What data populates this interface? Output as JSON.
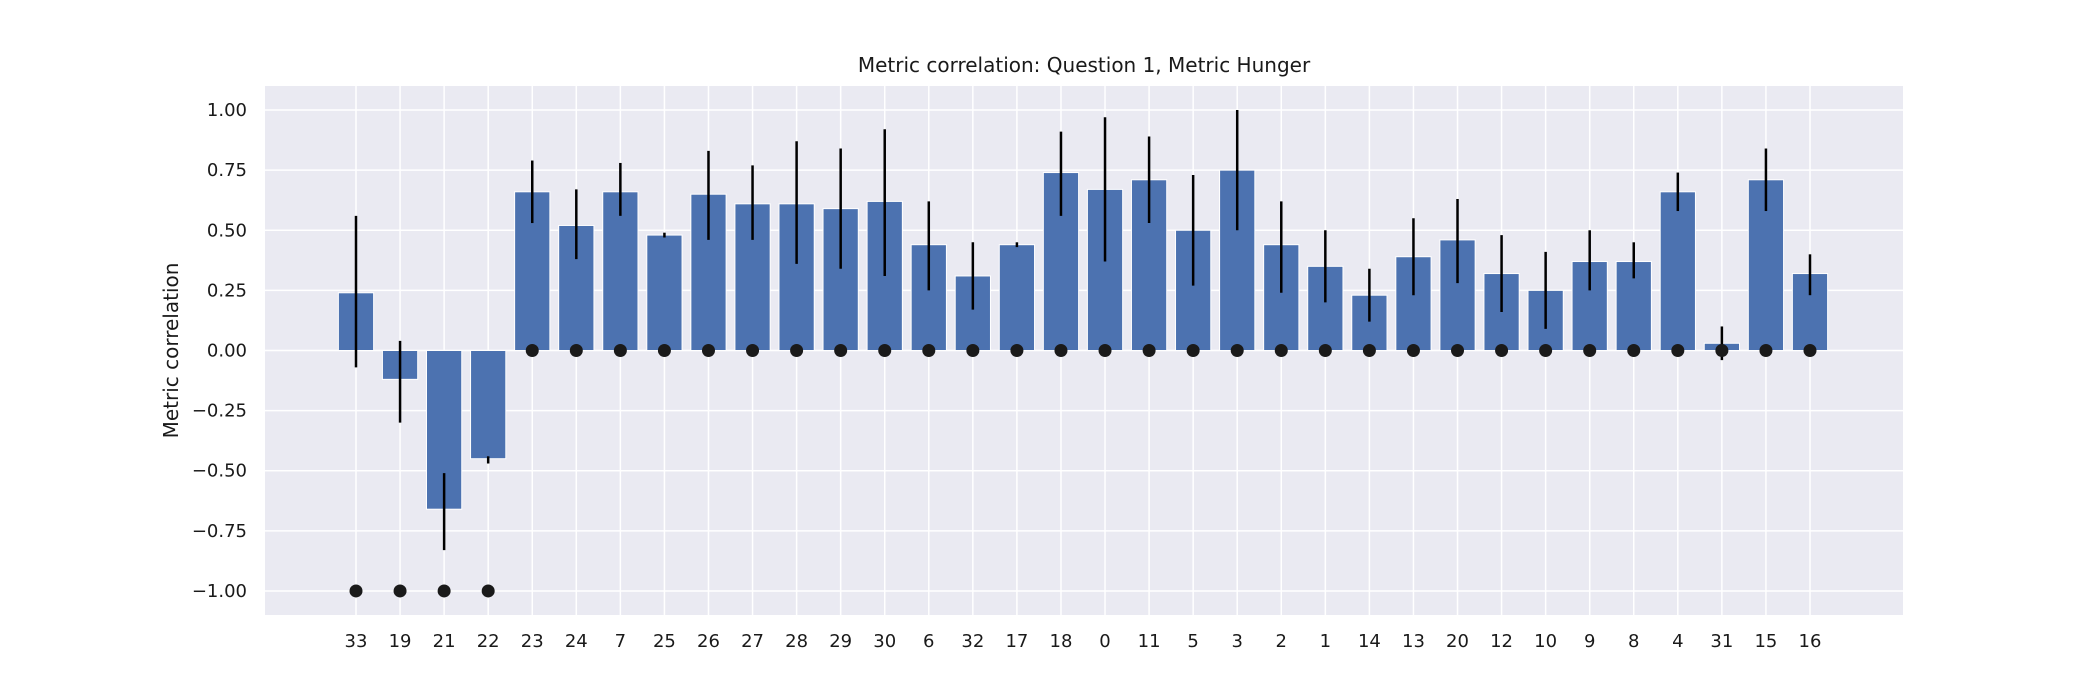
{
  "chart_data": {
    "type": "bar",
    "title": "Metric correlation: Question 1, Metric Hunger",
    "xlabel": "",
    "ylabel": "Metric correlation",
    "ylim": [
      -1.1,
      1.1
    ],
    "yticks": [
      -1.0,
      -0.75,
      -0.5,
      -0.25,
      0.0,
      0.25,
      0.5,
      0.75,
      1.0
    ],
    "ytick_labels": [
      "−1.00",
      "−0.75",
      "−0.50",
      "−0.25",
      "0.00",
      "0.25",
      "0.50",
      "0.75",
      "1.00"
    ],
    "grid": true,
    "categories": [
      "33",
      "19",
      "21",
      "22",
      "23",
      "24",
      "7",
      "25",
      "26",
      "27",
      "28",
      "29",
      "30",
      "6",
      "32",
      "17",
      "18",
      "0",
      "11",
      "5",
      "3",
      "2",
      "1",
      "14",
      "13",
      "20",
      "12",
      "10",
      "9",
      "8",
      "4",
      "31",
      "15",
      "16"
    ],
    "values": [
      0.24,
      -0.12,
      -0.66,
      -0.45,
      0.66,
      0.52,
      0.66,
      0.48,
      0.65,
      0.61,
      0.61,
      0.59,
      0.62,
      0.44,
      0.31,
      0.44,
      0.74,
      0.67,
      0.71,
      0.5,
      0.75,
      0.44,
      0.35,
      0.23,
      0.39,
      0.46,
      0.32,
      0.25,
      0.37,
      0.37,
      0.66,
      0.03,
      0.71,
      0.32
    ],
    "error_low": [
      -0.07,
      -0.3,
      -0.83,
      -0.47,
      0.53,
      0.38,
      0.56,
      0.47,
      0.46,
      0.46,
      0.36,
      0.34,
      0.31,
      0.25,
      0.17,
      0.43,
      0.56,
      0.37,
      0.53,
      0.27,
      0.5,
      0.24,
      0.2,
      0.12,
      0.23,
      0.28,
      0.16,
      0.09,
      0.25,
      0.3,
      0.58,
      -0.04,
      0.58,
      0.23
    ],
    "error_high": [
      0.56,
      0.04,
      -0.51,
      -0.44,
      0.79,
      0.67,
      0.78,
      0.49,
      0.83,
      0.77,
      0.87,
      0.84,
      0.92,
      0.62,
      0.45,
      0.45,
      0.91,
      0.97,
      0.89,
      0.73,
      1.0,
      0.62,
      0.5,
      0.34,
      0.55,
      0.63,
      0.48,
      0.41,
      0.5,
      0.45,
      0.74,
      0.1,
      0.84,
      0.4
    ],
    "markers": [
      -1,
      -1,
      -1,
      -1,
      0,
      0,
      0,
      0,
      0,
      0,
      0,
      0,
      0,
      0,
      0,
      0,
      0,
      0,
      0,
      0,
      0,
      0,
      0,
      0,
      0,
      0,
      0,
      0,
      0,
      0,
      0,
      0,
      0,
      0
    ],
    "colors": {
      "bar": "#4c72b0",
      "background": "#eaeaf2",
      "grid": "#ffffff",
      "error": "#000000",
      "marker": "#1a1a1a"
    }
  }
}
